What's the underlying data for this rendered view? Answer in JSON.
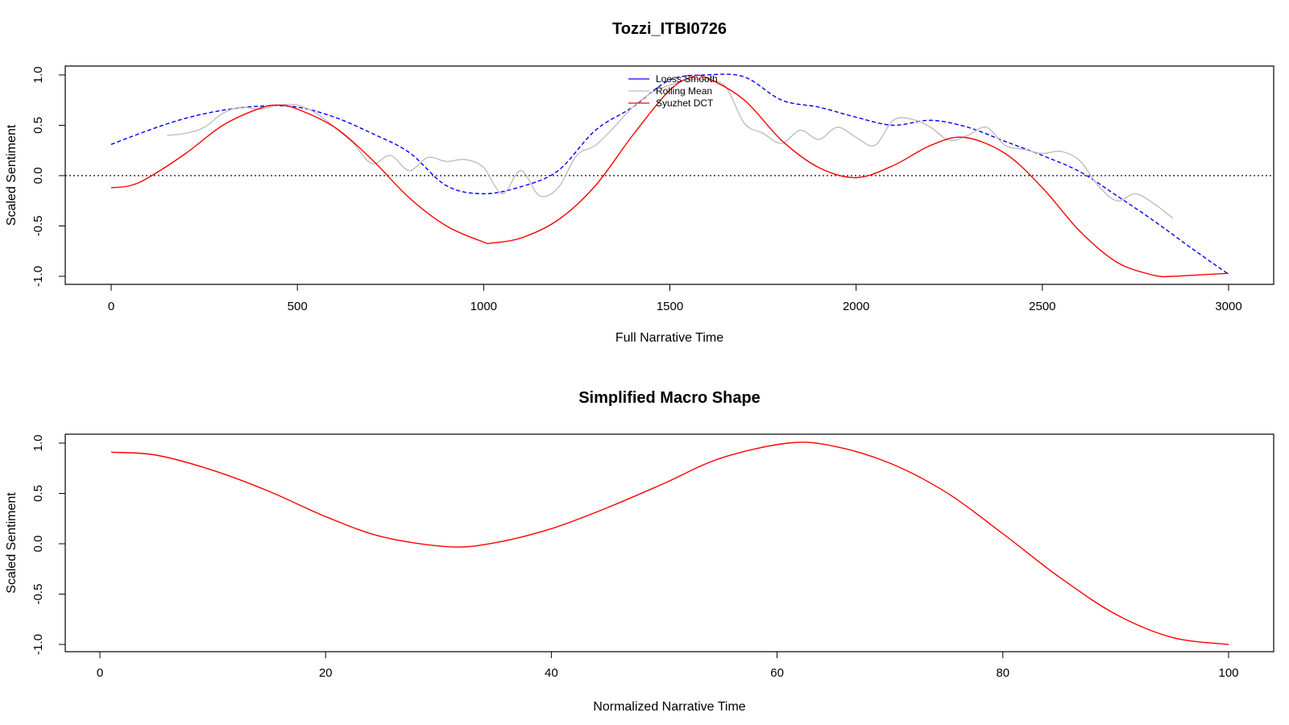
{
  "chart_data": [
    {
      "type": "line",
      "title": "Tozzi_ITBI0726",
      "xlabel": "Full Narrative Time",
      "ylabel": "Scaled Sentiment",
      "xlim": [
        0,
        3000
      ],
      "ylim": [
        -1.0,
        1.0
      ],
      "xticks": [
        0,
        500,
        1000,
        1500,
        2000,
        2500,
        3000
      ],
      "xtick_labels": [
        "0",
        "500",
        "1000",
        "1500",
        "2000",
        "2500",
        "3000"
      ],
      "yticks": [
        -1.0,
        -0.5,
        0.0,
        0.5,
        1.0
      ],
      "ytick_labels": [
        "-1.0",
        "-0.5",
        "0.0",
        "0.5",
        "1.0"
      ],
      "reference_line": {
        "y": 0,
        "style": "dotted"
      },
      "legend_position": "top-center",
      "legend": [
        "Loess Smooth",
        "Rolling Mean",
        "Syuzhet DCT"
      ],
      "series": [
        {
          "name": "Loess Smooth",
          "color": "#0000ff",
          "style": "dashed",
          "x": [
            0,
            100,
            200,
            300,
            400,
            500,
            600,
            700,
            800,
            900,
            1000,
            1100,
            1200,
            1300,
            1400,
            1500,
            1600,
            1700,
            1800,
            1900,
            2000,
            2100,
            2200,
            2300,
            2400,
            2500,
            2600,
            2700,
            2800,
            2900,
            3000
          ],
          "y": [
            0.31,
            0.45,
            0.57,
            0.65,
            0.69,
            0.68,
            0.58,
            0.42,
            0.23,
            -0.1,
            -0.18,
            -0.11,
            0.05,
            0.45,
            0.68,
            0.95,
            1.0,
            0.98,
            0.75,
            0.68,
            0.58,
            0.5,
            0.55,
            0.48,
            0.34,
            0.2,
            0.04,
            -0.2,
            -0.45,
            -0.72,
            -0.98
          ]
        },
        {
          "name": "Rolling Mean",
          "color": "#bebebe",
          "style": "solid",
          "x": [
            150,
            200,
            250,
            300,
            350,
            400,
            450,
            500,
            550,
            600,
            650,
            700,
            750,
            800,
            850,
            900,
            950,
            1000,
            1050,
            1100,
            1150,
            1200,
            1250,
            1300,
            1350,
            1400,
            1450,
            1500,
            1550,
            1600,
            1650,
            1700,
            1750,
            1800,
            1850,
            1900,
            1950,
            2000,
            2050,
            2100,
            2150,
            2200,
            2250,
            2300,
            2350,
            2400,
            2450,
            2500,
            2550,
            2600,
            2650,
            2700,
            2750,
            2800,
            2850
          ],
          "y": [
            0.4,
            0.42,
            0.48,
            0.62,
            0.68,
            0.66,
            0.7,
            0.7,
            0.62,
            0.48,
            0.32,
            0.12,
            0.2,
            0.05,
            0.18,
            0.14,
            0.16,
            0.08,
            -0.18,
            0.05,
            -0.2,
            -0.12,
            0.2,
            0.3,
            0.48,
            0.68,
            0.82,
            0.9,
            0.95,
            0.95,
            0.88,
            0.52,
            0.42,
            0.32,
            0.45,
            0.36,
            0.48,
            0.38,
            0.3,
            0.55,
            0.56,
            0.48,
            0.35,
            0.4,
            0.48,
            0.3,
            0.26,
            0.22,
            0.24,
            0.15,
            -0.1,
            -0.25,
            -0.18,
            -0.28,
            -0.42
          ]
        },
        {
          "name": "Syuzhet DCT",
          "color": "#ff0000",
          "style": "solid",
          "x": [
            0,
            50,
            100,
            200,
            300,
            400,
            450,
            500,
            600,
            700,
            800,
            900,
            1000,
            1020,
            1100,
            1200,
            1300,
            1400,
            1500,
            1560,
            1600,
            1700,
            1800,
            1900,
            2000,
            2100,
            2200,
            2290,
            2400,
            2500,
            2600,
            2700,
            2800,
            2850,
            2900,
            3000
          ],
          "y": [
            -0.12,
            -0.1,
            -0.02,
            0.22,
            0.5,
            0.67,
            0.7,
            0.66,
            0.48,
            0.16,
            -0.22,
            -0.5,
            -0.66,
            -0.67,
            -0.62,
            -0.44,
            -0.1,
            0.4,
            0.85,
            0.98,
            0.97,
            0.75,
            0.35,
            0.08,
            -0.02,
            0.1,
            0.3,
            0.38,
            0.22,
            -0.12,
            -0.55,
            -0.86,
            -0.99,
            -1.0,
            -0.99,
            -0.97
          ]
        }
      ]
    },
    {
      "type": "line",
      "title": "Simplified Macro Shape",
      "xlabel": "Normalized Narrative Time",
      "ylabel": "Scaled Sentiment",
      "xlim": [
        1,
        100
      ],
      "ylim": [
        -1.0,
        1.0
      ],
      "xticks": [
        0,
        20,
        40,
        60,
        80,
        100
      ],
      "xtick_labels": [
        "0",
        "20",
        "40",
        "60",
        "80",
        "100"
      ],
      "yticks": [
        -1.0,
        -0.5,
        0.0,
        0.5,
        1.0
      ],
      "ytick_labels": [
        "-1.0",
        "-0.5",
        "0.0",
        "0.5",
        "1.0"
      ],
      "series": [
        {
          "color": "#ff0000",
          "style": "solid",
          "x": [
            1,
            5,
            10,
            15,
            20,
            25,
            31,
            35,
            40,
            45,
            50,
            55,
            61,
            65,
            70,
            75,
            80,
            85,
            90,
            95,
            100
          ],
          "y": [
            0.91,
            0.88,
            0.73,
            0.52,
            0.27,
            0.07,
            -0.03,
            0.01,
            0.15,
            0.36,
            0.6,
            0.85,
            1.0,
            0.97,
            0.8,
            0.51,
            0.1,
            -0.33,
            -0.7,
            -0.93,
            -1.0
          ]
        }
      ]
    }
  ]
}
